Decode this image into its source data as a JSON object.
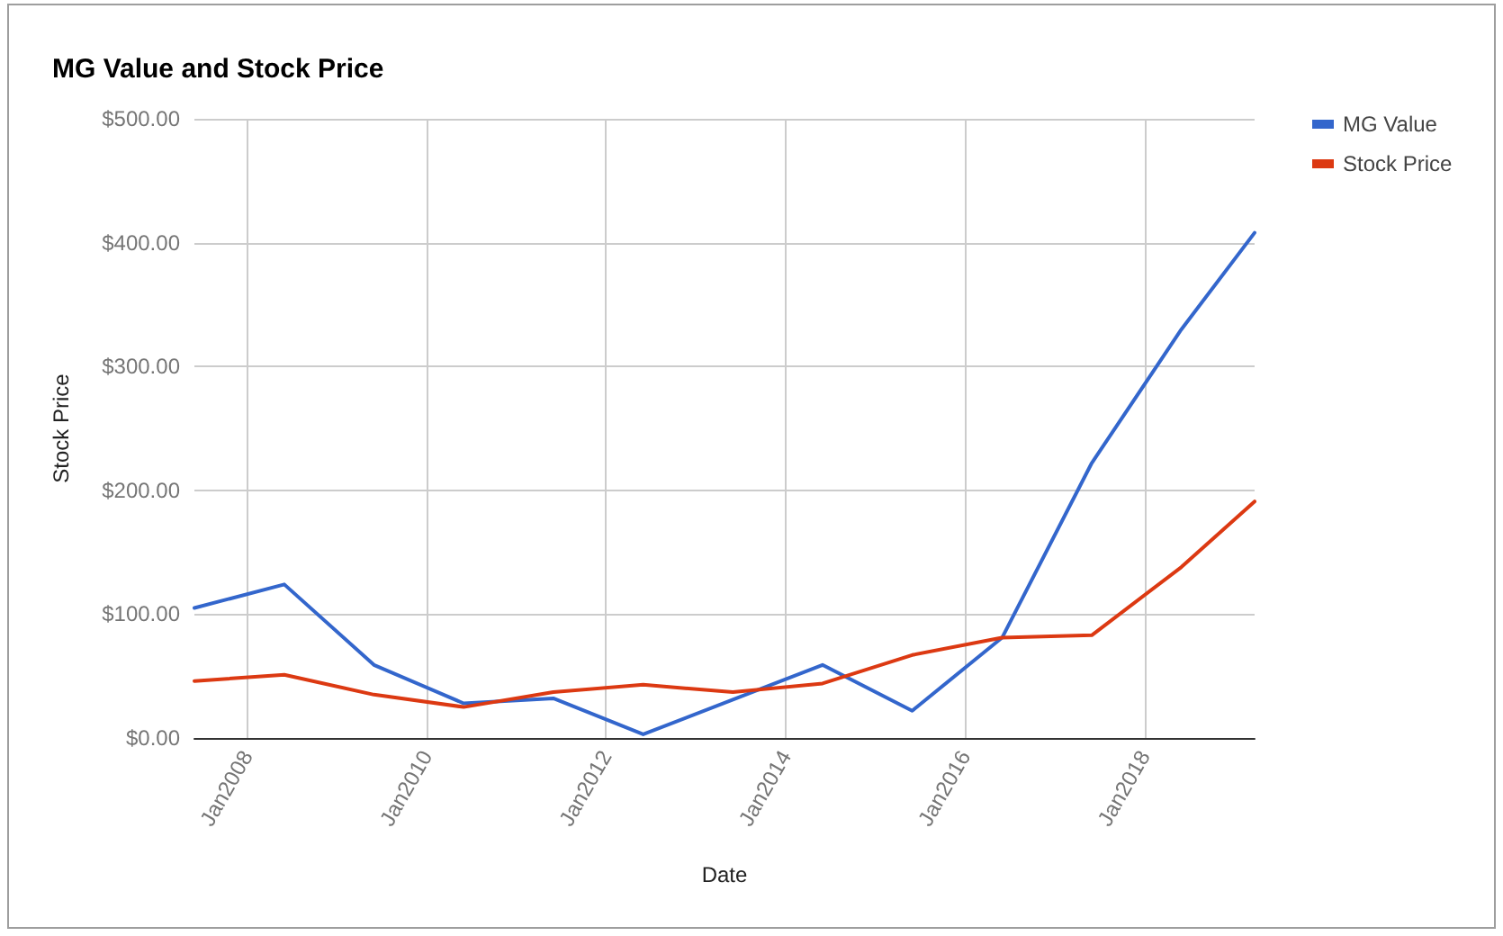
{
  "chart_data": {
    "type": "line",
    "title": "MG Value and Stock Price",
    "xlabel": "Date",
    "ylabel": "Stock Price",
    "x": [
      "2007-05-31",
      "2008-05-31",
      "2009-05-31",
      "2010-05-31",
      "2011-05-31",
      "2012-05-31",
      "2013-05-31",
      "2014-05-31",
      "2015-05-31",
      "2016-05-31",
      "2017-05-31",
      "2018-05-31",
      "2019-03-25"
    ],
    "series": [
      {
        "name": "MG Value",
        "color": "#3366cc",
        "values": [
          105,
          124,
          59,
          28,
          32,
          3,
          31,
          59,
          22,
          81,
          222,
          330,
          408
        ]
      },
      {
        "name": "Stock Price",
        "color": "#dc3912",
        "values": [
          46,
          51,
          35,
          25,
          37,
          43,
          37,
          44,
          67,
          81,
          83,
          138,
          191
        ]
      }
    ],
    "xlim": [
      "2007-05-31",
      "2019-03-25"
    ],
    "xticks": [
      {
        "value": "2008-01-01",
        "label": "Jan2008"
      },
      {
        "value": "2010-01-01",
        "label": "Jan2010"
      },
      {
        "value": "2012-01-01",
        "label": "Jan2012"
      },
      {
        "value": "2014-01-01",
        "label": "Jan2014"
      },
      {
        "value": "2016-01-01",
        "label": "Jan2016"
      },
      {
        "value": "2018-01-01",
        "label": "Jan2018"
      }
    ],
    "ylim": [
      0,
      500
    ],
    "yticks": [
      {
        "value": 0,
        "label": "$0.00"
      },
      {
        "value": 100,
        "label": "$100.00"
      },
      {
        "value": 200,
        "label": "$200.00"
      },
      {
        "value": 300,
        "label": "$300.00"
      },
      {
        "value": 400,
        "label": "$400.00"
      },
      {
        "value": 500,
        "label": "$500.00"
      }
    ],
    "grid": true,
    "legend": "top right",
    "marker": "none",
    "line_style": "solid"
  }
}
